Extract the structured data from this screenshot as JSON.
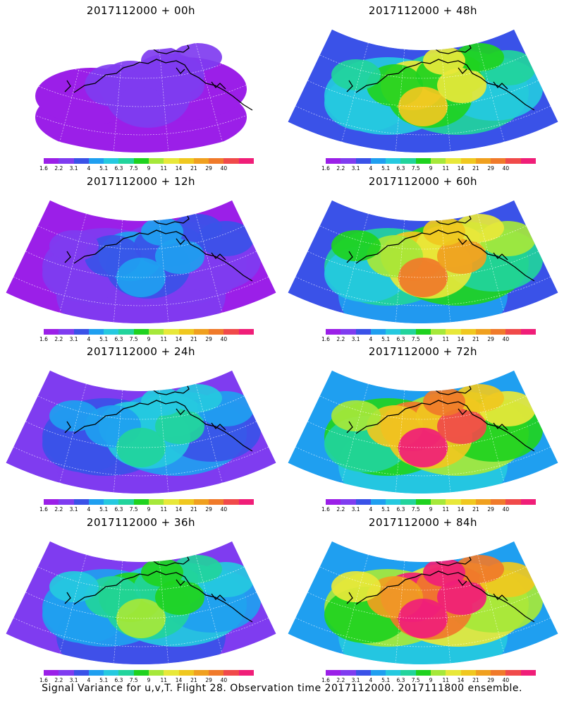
{
  "caption": "Signal Variance for u,v,T. Flight 28. Observation time 2017112000. 2017111800 ensemble.",
  "colorbar": {
    "colors": [
      "#9b1fe8",
      "#7f3cf0",
      "#3a52e8",
      "#1f9ff0",
      "#25c9e0",
      "#22d49c",
      "#1fd21f",
      "#a6e83a",
      "#e8e83a",
      "#f0c81f",
      "#f0a01f",
      "#f07a2a",
      "#f04a4a",
      "#f01e78"
    ],
    "ticks": [
      "1.6",
      "2.2",
      "3.1",
      "4",
      "5.1",
      "6.3",
      "7.5",
      "9",
      "11",
      "14",
      "21",
      "29",
      "40"
    ]
  },
  "panels": [
    {
      "title": "2017112000 + 00h",
      "level": 0
    },
    {
      "title": "2017112000 + 48h",
      "level": 4
    },
    {
      "title": "2017112000 + 12h",
      "level": 1
    },
    {
      "title": "2017112000 + 60h",
      "level": 5
    },
    {
      "title": "2017112000 + 24h",
      "level": 2
    },
    {
      "title": "2017112000 + 72h",
      "level": 6
    },
    {
      "title": "2017112000 + 36h",
      "level": 3
    },
    {
      "title": "2017112000 + 84h",
      "level": 7
    }
  ]
}
